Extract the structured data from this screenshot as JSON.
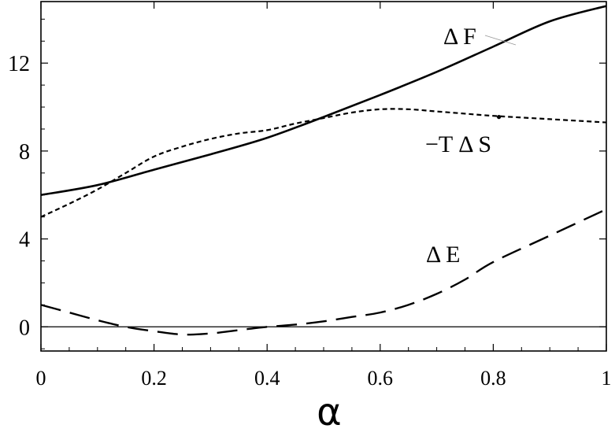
{
  "chart_data": {
    "type": "line",
    "xlabel": "α",
    "ylabel": "",
    "xlim": [
      0,
      1
    ],
    "ylim": [
      -1.1,
      14.8
    ],
    "x_ticks": [
      0,
      0.2,
      0.4,
      0.6,
      0.8,
      1
    ],
    "x_tick_labels": [
      "0",
      "0.2",
      "0.4",
      "0.6",
      "0.8",
      "1"
    ],
    "y_ticks": [
      0,
      4,
      8,
      12
    ],
    "y_tick_labels": [
      "0",
      "4",
      "8",
      "12"
    ],
    "zero_line": true,
    "grid": false,
    "series": [
      {
        "name": "Δ F",
        "style": "solid",
        "x": [
          0,
          0.1,
          0.2,
          0.3,
          0.4,
          0.5,
          0.6,
          0.7,
          0.8,
          0.9,
          1.0
        ],
        "y": [
          6.0,
          6.45,
          7.15,
          7.85,
          8.6,
          9.55,
          10.55,
          11.6,
          12.75,
          13.9,
          14.6
        ]
      },
      {
        "name": "−T Δ S",
        "style": "dotted",
        "x": [
          0,
          0.05,
          0.1,
          0.15,
          0.2,
          0.25,
          0.3,
          0.35,
          0.4,
          0.45,
          0.5,
          0.55,
          0.6,
          0.65,
          0.7,
          0.75,
          0.8,
          0.9,
          1.0
        ],
        "y": [
          5.0,
          5.6,
          6.25,
          7.0,
          7.75,
          8.2,
          8.55,
          8.8,
          8.95,
          9.25,
          9.5,
          9.75,
          9.9,
          9.9,
          9.8,
          9.7,
          9.6,
          9.45,
          9.3
        ],
        "marker": {
          "x": 0.81,
          "y": 9.55
        }
      },
      {
        "name": "Δ E",
        "style": "dashed",
        "x": [
          0,
          0.05,
          0.1,
          0.15,
          0.2,
          0.25,
          0.3,
          0.35,
          0.4,
          0.45,
          0.5,
          0.55,
          0.6,
          0.65,
          0.7,
          0.75,
          0.8,
          0.9,
          1.0
        ],
        "y": [
          1.0,
          0.65,
          0.3,
          0.0,
          -0.2,
          -0.35,
          -0.3,
          -0.15,
          0.0,
          0.1,
          0.25,
          0.45,
          0.65,
          1.0,
          1.5,
          2.15,
          2.95,
          4.15,
          5.35
        ]
      }
    ],
    "annotations": [
      {
        "text": "Δ F",
        "series": "Δ F"
      },
      {
        "text": "−T Δ S",
        "series": "−T Δ S"
      },
      {
        "text": "Δ E",
        "series": "Δ E"
      }
    ]
  }
}
